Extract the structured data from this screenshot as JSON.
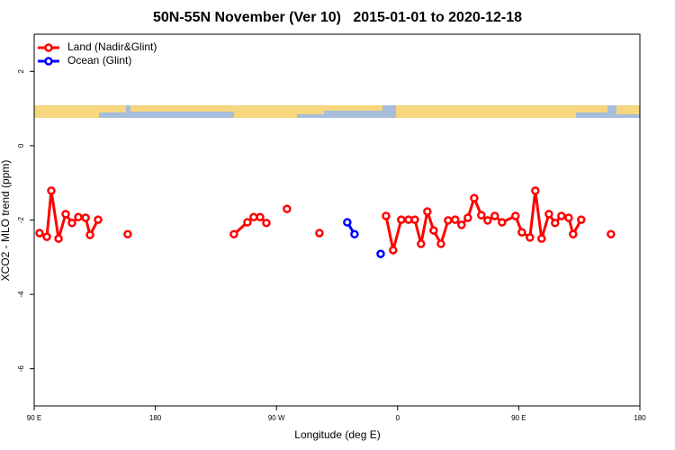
{
  "chart_data": {
    "type": "line",
    "title": "50N-55N November (Ver 10)   2015-01-01 to 2020-12-18",
    "xlabel": "Longitude (deg E)",
    "ylabel": "XCO2 - MLO trend (ppm)",
    "xlim": [
      90,
      540
    ],
    "ylim": [
      -7,
      3
    ],
    "xticks": [
      {
        "value": 90,
        "label": "90 E"
      },
      180,
      {
        "value": 270,
        "label": "90 W"
      },
      {
        "value": 360,
        "label": "0"
      },
      {
        "value": 450,
        "label": "90 E"
      },
      {
        "value": 540,
        "label": "180"
      }
    ],
    "yticks": [
      2,
      0,
      -2,
      -4,
      -6
    ],
    "legend": "topleft",
    "series": [
      {
        "name": "Land (Nadir&Glint)",
        "color": "#ff0000",
        "x": [
          94.0,
          99.4,
          102.7,
          108.1,
          113.4,
          118.1,
          122.8,
          128.2,
          131.5,
          137.5,
          null,
          159.5,
          null,
          238.4,
          248.4,
          253.1,
          257.8,
          262.5,
          null,
          277.8,
          null,
          301.9,
          null,
          351.4,
          356.7,
          362.7,
          368.1,
          372.8,
          377.4,
          382.1,
          386.8,
          392.2,
          397.5,
          402.8,
          407.5,
          412.2,
          416.9,
          422.2,
          426.9,
          432.2,
          437.6,
          447.6,
          452.3,
          458.3,
          462.3,
          467.0,
          472.4,
          477.0,
          481.7,
          487.1,
          490.4,
          496.4,
          null,
          518.5
        ],
        "values": [
          -2.35,
          -2.45,
          -1.21,
          -2.5,
          -1.84,
          -2.08,
          -1.92,
          -1.94,
          -2.4,
          -1.99,
          null,
          -2.38,
          null,
          -2.38,
          -2.06,
          -1.92,
          -1.92,
          -2.08,
          null,
          -1.7,
          null,
          -2.35,
          null,
          -1.89,
          -2.81,
          -1.99,
          -1.99,
          -1.99,
          -2.64,
          -1.77,
          -2.28,
          -2.64,
          -2.01,
          -1.99,
          -2.13,
          -1.94,
          -1.41,
          -1.87,
          -2.01,
          -1.89,
          -2.06,
          -1.89,
          -2.33,
          -2.47,
          -1.21,
          -2.5,
          -1.84,
          -2.08,
          -1.89,
          -1.94,
          -2.38,
          -1.99,
          null,
          -2.38
        ]
      },
      {
        "name": "Ocean (Glint)",
        "color": "#0000ff",
        "x": [
          322.6,
          328.0,
          null,
          347.4
        ],
        "values": [
          -2.06,
          -2.38,
          null,
          -2.91
        ]
      }
    ]
  }
}
